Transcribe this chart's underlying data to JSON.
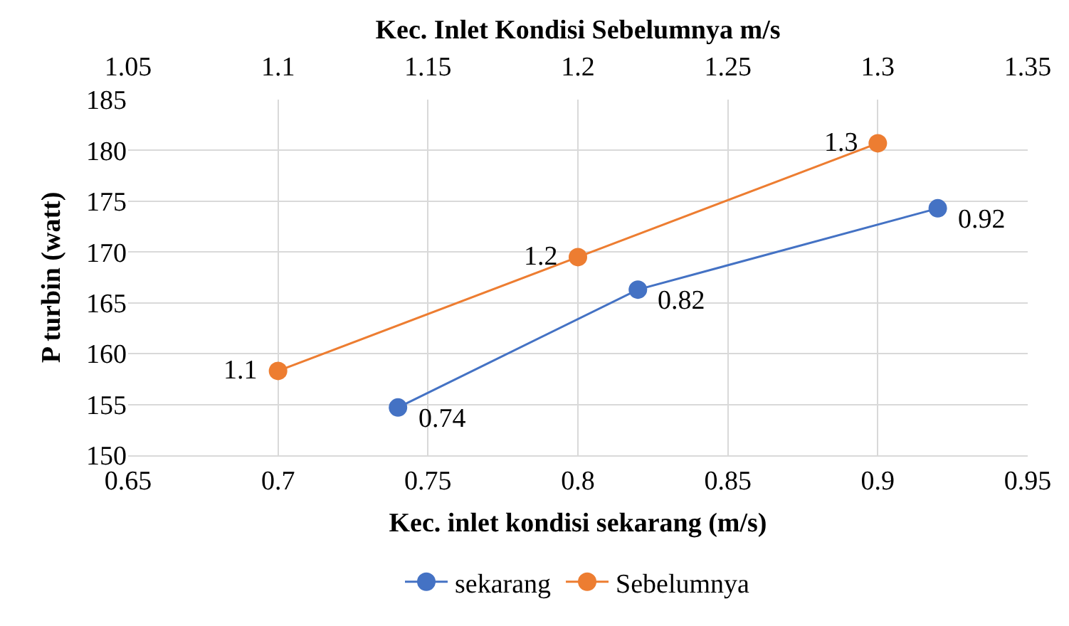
{
  "chart_data": {
    "type": "line",
    "xlabel": "Kec. inlet kondisi sekarang (m/s)",
    "x2label": "Kec. Inlet Kondisi Sebelumnya m/s",
    "ylabel": "P turbin (watt)",
    "xlim": [
      0.65,
      0.95
    ],
    "xticks": [
      0.65,
      0.7,
      0.75,
      0.8,
      0.85,
      0.9,
      0.95
    ],
    "x2lim": [
      1.05,
      1.35
    ],
    "x2ticks": [
      1.05,
      1.1,
      1.15,
      1.2,
      1.25,
      1.3,
      1.35
    ],
    "ylim": [
      150,
      185
    ],
    "yticks": [
      150,
      155,
      160,
      165,
      170,
      175,
      180,
      185
    ],
    "series": [
      {
        "name": "sekarang",
        "color": "#4472c4",
        "x": [
          0.74,
          0.82,
          0.92
        ],
        "values": [
          154.7,
          166.3,
          174.3
        ]
      },
      {
        "name": "Sebelumnya",
        "color": "#ed7d31",
        "axis": "x2",
        "x": [
          1.1,
          1.2,
          1.3
        ],
        "values": [
          158.3,
          169.5,
          180.7
        ]
      }
    ],
    "annotations": [
      {
        "text": "0.74",
        "x": 0.74,
        "y": 154.7
      },
      {
        "text": "0.82",
        "x": 0.82,
        "y": 166.3
      },
      {
        "text": "0.92",
        "x": 0.92,
        "y": 174.3
      },
      {
        "text": "1.1",
        "x": 0.7,
        "y": 158.3
      },
      {
        "text": "1.2",
        "x": 0.8,
        "y": 169.5
      },
      {
        "text": "1.3",
        "x": 0.9,
        "y": 180.7
      }
    ],
    "grid": true,
    "legend": "bottom",
    "marker": "circle",
    "line_style": "solid"
  }
}
